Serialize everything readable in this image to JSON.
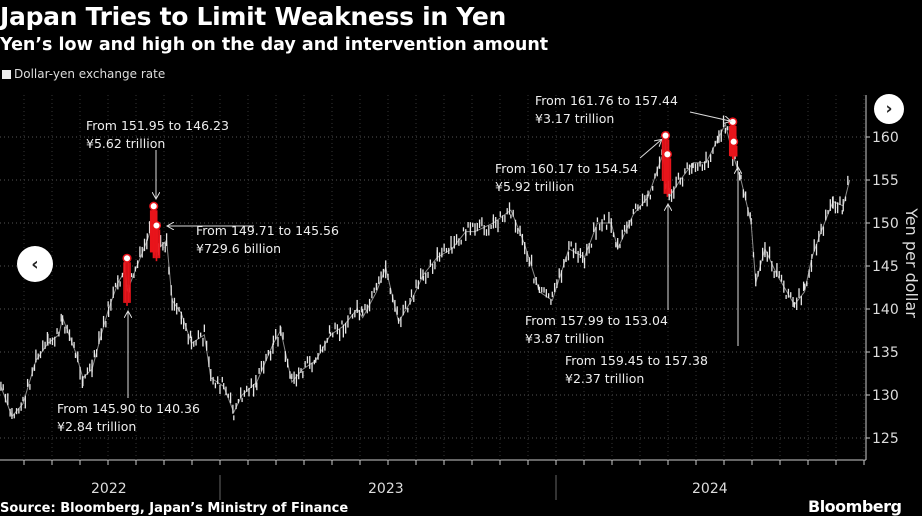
{
  "chart_data": {
    "type": "line",
    "title": "Japan Tries to Limit Weakness in Yen",
    "subtitle": "Yen’s low and high on the day and intervention amount",
    "legend": [
      "Dollar-yen exchange rate"
    ],
    "ylabel": "Yen per dollar",
    "ylim": [
      122,
      164
    ],
    "yticks": [
      125,
      130,
      135,
      140,
      145,
      150,
      155,
      160
    ],
    "xticks": [
      "2022",
      "2023",
      "2024"
    ],
    "series": [
      [
        "2022-05-08",
        131
      ],
      [
        "2022-05-20",
        127.5
      ],
      [
        "2022-06-01",
        129
      ],
      [
        "2022-06-15",
        134
      ],
      [
        "2022-06-28",
        136
      ],
      [
        "2022-07-10",
        137
      ],
      [
        "2022-07-14",
        139
      ],
      [
        "2022-07-28",
        135
      ],
      [
        "2022-08-05",
        132
      ],
      [
        "2022-08-15",
        133
      ],
      [
        "2022-08-25",
        137
      ],
      [
        "2022-09-02",
        140
      ],
      [
        "2022-09-12",
        143
      ],
      [
        "2022-09-20",
        144.5
      ],
      [
        "2022-09-22",
        142
      ],
      [
        "2022-10-01",
        144.5
      ],
      [
        "2022-10-14",
        148
      ],
      [
        "2022-10-20",
        150
      ],
      [
        "2022-10-21",
        148
      ],
      [
        "2022-10-26",
        147
      ],
      [
        "2022-11-04",
        148
      ],
      [
        "2022-11-10",
        141
      ],
      [
        "2022-11-20",
        139.5
      ],
      [
        "2022-12-01",
        136
      ],
      [
        "2022-12-15",
        137
      ],
      [
        "2022-12-22",
        132
      ],
      [
        "2023-01-05",
        131
      ],
      [
        "2023-01-16",
        128
      ],
      [
        "2023-01-25",
        130
      ],
      [
        "2023-02-10",
        131.5
      ],
      [
        "2023-02-28",
        136
      ],
      [
        "2023-03-08",
        137.5
      ],
      [
        "2023-03-20",
        131.5
      ],
      [
        "2023-04-01",
        133
      ],
      [
        "2023-04-15",
        134
      ],
      [
        "2023-05-01",
        137
      ],
      [
        "2023-05-15",
        138
      ],
      [
        "2023-05-30",
        140
      ],
      [
        "2023-06-05",
        139
      ],
      [
        "2023-06-20",
        142
      ],
      [
        "2023-06-30",
        144.8
      ],
      [
        "2023-07-14",
        138.5
      ],
      [
        "2023-07-28",
        141
      ],
      [
        "2023-08-10",
        144
      ],
      [
        "2023-08-25",
        146
      ],
      [
        "2023-09-10",
        147
      ],
      [
        "2023-09-25",
        149
      ],
      [
        "2023-10-05",
        149
      ],
      [
        "2023-10-25",
        150
      ],
      [
        "2023-11-13",
        151.5
      ],
      [
        "2023-11-28",
        147.5
      ],
      [
        "2023-12-14",
        142
      ],
      [
        "2023-12-28",
        141
      ],
      [
        "2024-01-15",
        147
      ],
      [
        "2024-02-01",
        146
      ],
      [
        "2024-02-15",
        150
      ],
      [
        "2024-03-01",
        150
      ],
      [
        "2024-03-08",
        147
      ],
      [
        "2024-03-25",
        151
      ],
      [
        "2024-04-10",
        153
      ],
      [
        "2024-04-26",
        158
      ],
      [
        "2024-04-29",
        155
      ],
      [
        "2024-05-03",
        153
      ],
      [
        "2024-05-15",
        155
      ],
      [
        "2024-05-29",
        157
      ],
      [
        "2024-06-12",
        157
      ],
      [
        "2024-06-26",
        160
      ],
      [
        "2024-07-03",
        161.5
      ],
      [
        "2024-07-11",
        158
      ],
      [
        "2024-07-20",
        155
      ],
      [
        "2024-07-31",
        150
      ],
      [
        "2024-08-05",
        143
      ],
      [
        "2024-08-15",
        147
      ],
      [
        "2024-08-28",
        144
      ],
      [
        "2024-09-16",
        140.5
      ],
      [
        "2024-09-27",
        142
      ],
      [
        "2024-10-05",
        146
      ],
      [
        "2024-10-15",
        149
      ],
      [
        "2024-10-28",
        152.5
      ],
      [
        "2024-11-08",
        152
      ],
      [
        "2024-11-15",
        155
      ]
    ],
    "interventions": [
      {
        "date": "2022-09-22",
        "from": "145.90",
        "to": "140.36",
        "high": 145.9,
        "low": 140.36,
        "amount": "¥2.84 trillion"
      },
      {
        "date": "2022-10-21",
        "from": "151.95",
        "to": "146.23",
        "high": 151.95,
        "low": 146.23,
        "amount": "¥5.62 trillion"
      },
      {
        "date": "2022-10-24",
        "from": "149.71",
        "to": "145.56",
        "high": 149.71,
        "low": 145.56,
        "amount": "¥729.6 billion"
      },
      {
        "date": "2024-04-29",
        "from": "160.17",
        "to": "154.54",
        "high": 160.17,
        "low": 154.54,
        "amount": "¥5.92 trillion"
      },
      {
        "date": "2024-05-01",
        "from": "157.99",
        "to": "153.04",
        "high": 157.99,
        "low": 153.04,
        "amount": "¥3.87 trillion"
      },
      {
        "date": "2024-07-11",
        "from": "161.76",
        "to": "157.44",
        "high": 161.76,
        "low": 157.44,
        "amount": "¥3.17 trillion"
      },
      {
        "date": "2024-07-12",
        "from": "159.45",
        "to": "157.38",
        "high": 159.45,
        "low": 157.38,
        "amount": "¥2.37 trillion"
      }
    ],
    "colors": {
      "line": "#e6e6e6",
      "intervention": "#e8141b",
      "grid": "#555555"
    }
  },
  "ann_text": [
    "From 145.90 to 140.36",
    "From 151.95 to 146.23",
    "From 149.71 to 145.56",
    "From 160.17 to 154.54",
    "From 157.99 to 153.04",
    "From 161.76 to 157.44",
    "From 159.45 to 157.38"
  ],
  "source": "Source: Bloomberg, Japan’s Ministry of Finance",
  "brand": "Bloomberg",
  "nav": {
    "prev": "‹",
    "next": "›"
  }
}
